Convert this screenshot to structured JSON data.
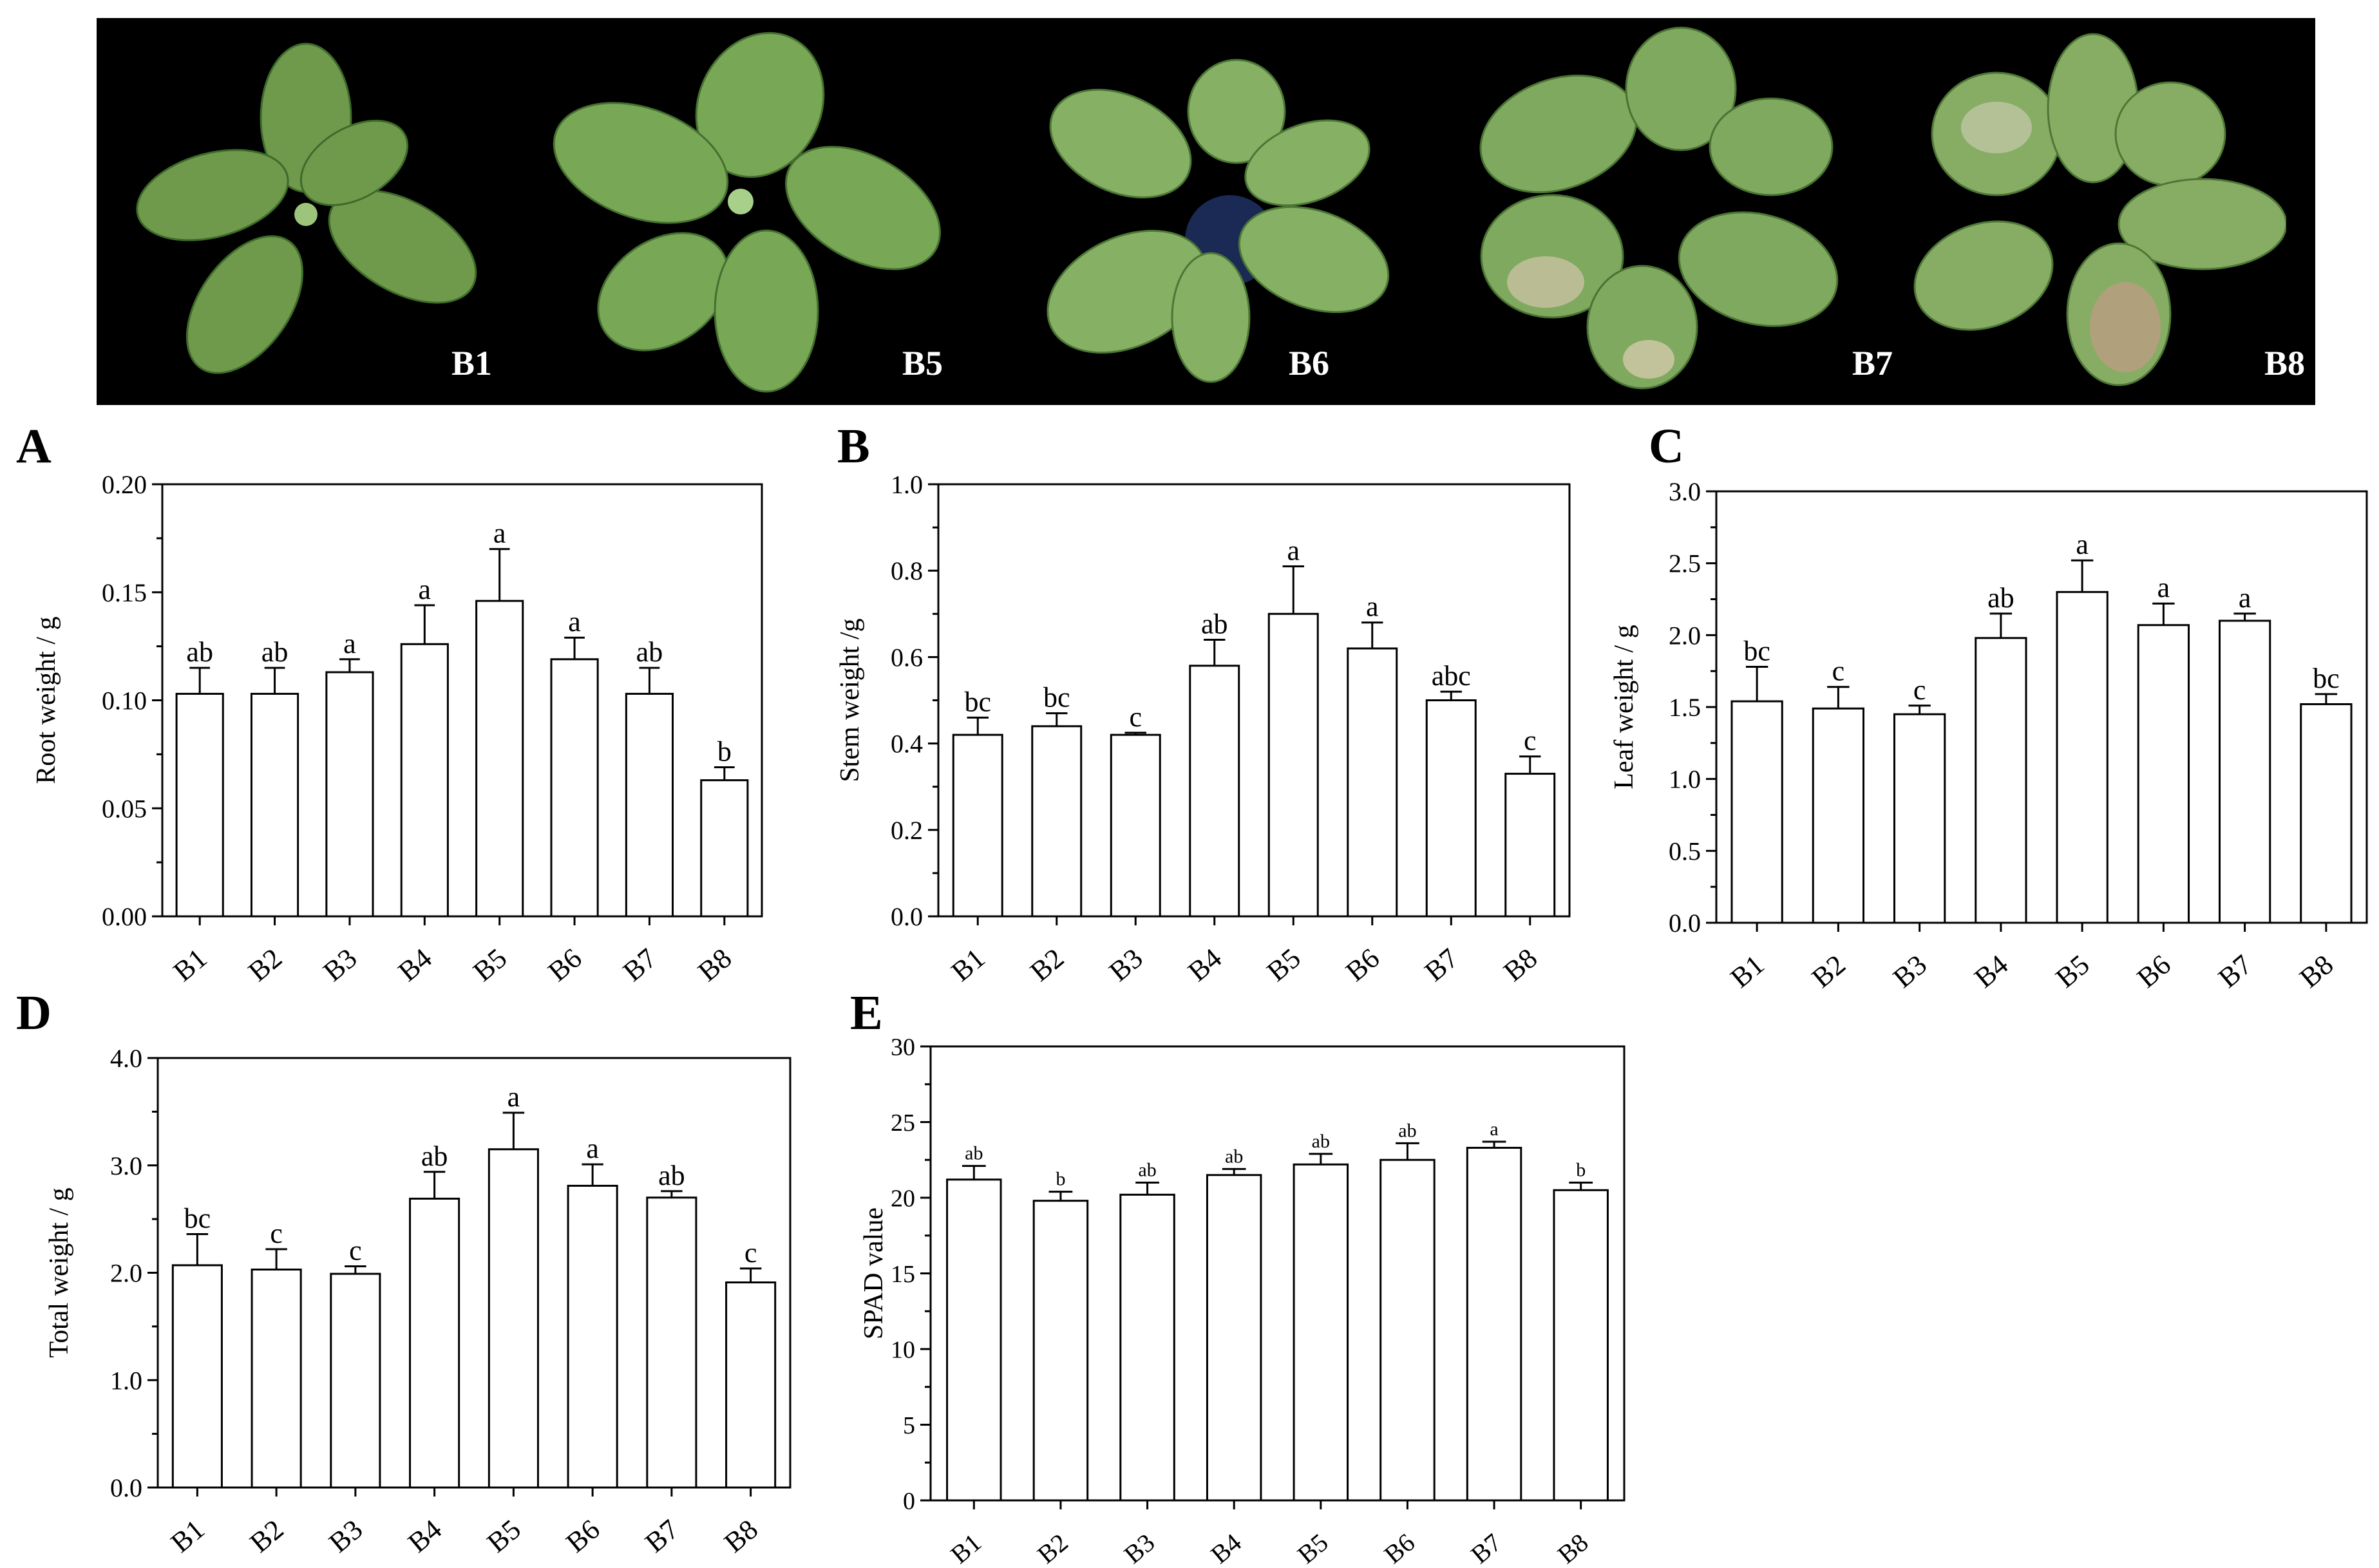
{
  "photos": {
    "labels": [
      "B1",
      "B5",
      "B6",
      "B7",
      "B8"
    ]
  },
  "panels": [
    "A",
    "B",
    "C",
    "D",
    "E"
  ],
  "chart_data": [
    {
      "panel": "A",
      "type": "bar",
      "ylabel": "Root weight / g",
      "categories": [
        "B1",
        "B2",
        "B3",
        "B4",
        "B5",
        "B6",
        "B7",
        "B8"
      ],
      "values": [
        0.103,
        0.103,
        0.113,
        0.126,
        0.146,
        0.119,
        0.103,
        0.063
      ],
      "errors": [
        0.012,
        0.012,
        0.006,
        0.018,
        0.024,
        0.01,
        0.012,
        0.006
      ],
      "letters": [
        "ab",
        "ab",
        "a",
        "a",
        "a",
        "a",
        "ab",
        "b"
      ],
      "ylim": [
        0,
        0.2
      ],
      "yticks": [
        0,
        0.05,
        0.1,
        0.15,
        0.2
      ],
      "ytick_labels": [
        "0.00",
        "0.05",
        "0.10",
        "0.15",
        "0.20"
      ]
    },
    {
      "panel": "B",
      "type": "bar",
      "ylabel": "Stem weight /g",
      "categories": [
        "B1",
        "B2",
        "B3",
        "B4",
        "B5",
        "B6",
        "B7",
        "B8"
      ],
      "values": [
        0.42,
        0.44,
        0.42,
        0.58,
        0.7,
        0.62,
        0.5,
        0.33
      ],
      "errors": [
        0.04,
        0.03,
        0.005,
        0.06,
        0.11,
        0.06,
        0.02,
        0.04
      ],
      "letters": [
        "bc",
        "bc",
        "c",
        "ab",
        "a",
        "a",
        "abc",
        "c"
      ],
      "ylim": [
        0,
        1.0
      ],
      "yticks": [
        0,
        0.2,
        0.4,
        0.6,
        0.8,
        1.0
      ],
      "ytick_labels": [
        "0.0",
        "0.2",
        "0.4",
        "0.6",
        "0.8",
        "1.0"
      ]
    },
    {
      "panel": "C",
      "type": "bar",
      "ylabel": "Leaf weight / g",
      "categories": [
        "B1",
        "B2",
        "B3",
        "B4",
        "B5",
        "B6",
        "B7",
        "B8"
      ],
      "values": [
        1.54,
        1.49,
        1.45,
        1.98,
        2.3,
        2.07,
        2.1,
        1.52
      ],
      "errors": [
        0.24,
        0.15,
        0.06,
        0.17,
        0.22,
        0.15,
        0.05,
        0.07
      ],
      "letters": [
        "bc",
        "c",
        "c",
        "ab",
        "a",
        "a",
        "a",
        "bc"
      ],
      "ylim": [
        0,
        3.0
      ],
      "yticks": [
        0,
        0.5,
        1.0,
        1.5,
        2.0,
        2.5,
        3.0
      ],
      "ytick_labels": [
        "0.0",
        "0.5",
        "1.0",
        "1.5",
        "2.0",
        "2.5",
        "3.0"
      ]
    },
    {
      "panel": "D",
      "type": "bar",
      "ylabel": "Total weight / g",
      "categories": [
        "B1",
        "B2",
        "B3",
        "B4",
        "B5",
        "B6",
        "B7",
        "B8"
      ],
      "values": [
        2.07,
        2.03,
        1.99,
        2.69,
        3.15,
        2.81,
        2.7,
        1.91
      ],
      "errors": [
        0.29,
        0.19,
        0.07,
        0.25,
        0.34,
        0.2,
        0.06,
        0.13
      ],
      "letters": [
        "bc",
        "c",
        "c",
        "ab",
        "a",
        "a",
        "ab",
        "c"
      ],
      "ylim": [
        0,
        4.0
      ],
      "yticks": [
        0,
        1.0,
        2.0,
        3.0,
        4.0
      ],
      "ytick_labels": [
        "0.0",
        "1.0",
        "2.0",
        "3.0",
        "4.0"
      ]
    },
    {
      "panel": "E",
      "type": "bar",
      "ylabel": "SPAD value",
      "categories": [
        "B1",
        "B2",
        "B3",
        "B4",
        "B5",
        "B6",
        "B7",
        "B8"
      ],
      "values": [
        21.2,
        19.8,
        20.2,
        21.5,
        22.2,
        22.5,
        23.3,
        20.5
      ],
      "errors": [
        0.9,
        0.6,
        0.8,
        0.4,
        0.7,
        1.1,
        0.4,
        0.5
      ],
      "letters": [
        "ab",
        "b",
        "ab",
        "ab",
        "ab",
        "ab",
        "a",
        "b"
      ],
      "ylim": [
        0,
        30
      ],
      "yticks": [
        0,
        5,
        10,
        15,
        20,
        25,
        30
      ],
      "ytick_labels": [
        "0",
        "5",
        "10",
        "15",
        "20",
        "25",
        "30"
      ]
    }
  ],
  "colors": {
    "bar_fill": "#ffffff",
    "stroke": "#000000",
    "photo_bg": "#000000"
  }
}
